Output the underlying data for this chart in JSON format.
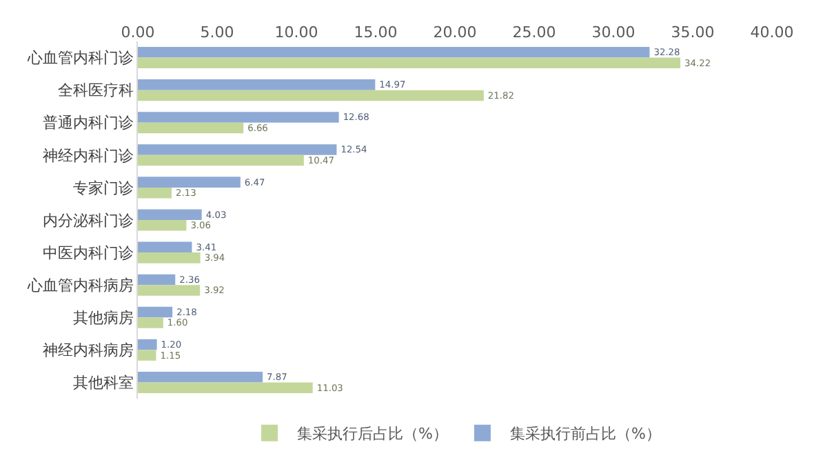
{
  "chart_data": {
    "type": "bar",
    "orientation": "horizontal",
    "categories": [
      "心血管内科门诊",
      "全科医疗科",
      "普通内科门诊",
      "神经内科门诊",
      "专家门诊",
      "内分泌科门诊",
      "中医内科门诊",
      "心血管内科病房",
      "其他病房",
      "神经内科病房",
      "其他科室"
    ],
    "series": [
      {
        "name": "集采执行后占比（%）",
        "color": "#c4d79b",
        "values": [
          34.22,
          21.82,
          6.66,
          10.47,
          2.13,
          3.06,
          3.94,
          3.92,
          1.6,
          1.15,
          11.03
        ],
        "value_labels": [
          "34.22",
          "21.82",
          "6.66",
          "10.47",
          "2.13",
          "3.06",
          "3.94",
          "3.92",
          "1.60",
          "1.15",
          "11.03"
        ]
      },
      {
        "name": "集采执行前占比（%）",
        "color": "#8eaad4",
        "values": [
          32.28,
          14.97,
          12.68,
          12.54,
          6.47,
          4.03,
          3.41,
          2.36,
          2.18,
          1.2,
          7.87
        ],
        "value_labels": [
          "32.28",
          "14.97",
          "12.68",
          "12.54",
          "6.47",
          "4.03",
          "3.41",
          "2.36",
          "2.18",
          "1.20",
          "7.87"
        ]
      }
    ],
    "xlim": [
      0,
      40
    ],
    "xticks": [
      {
        "value": 0,
        "label": "0.00"
      },
      {
        "value": 5,
        "label": "5.00"
      },
      {
        "value": 10,
        "label": "10.00"
      },
      {
        "value": 15,
        "label": "15.00"
      },
      {
        "value": 20,
        "label": "20.00"
      },
      {
        "value": 25,
        "label": "25.00"
      },
      {
        "value": 30,
        "label": "30.00"
      },
      {
        "value": 35,
        "label": "35.00"
      },
      {
        "value": 40,
        "label": "40.00"
      }
    ],
    "legend": "bottom"
  }
}
